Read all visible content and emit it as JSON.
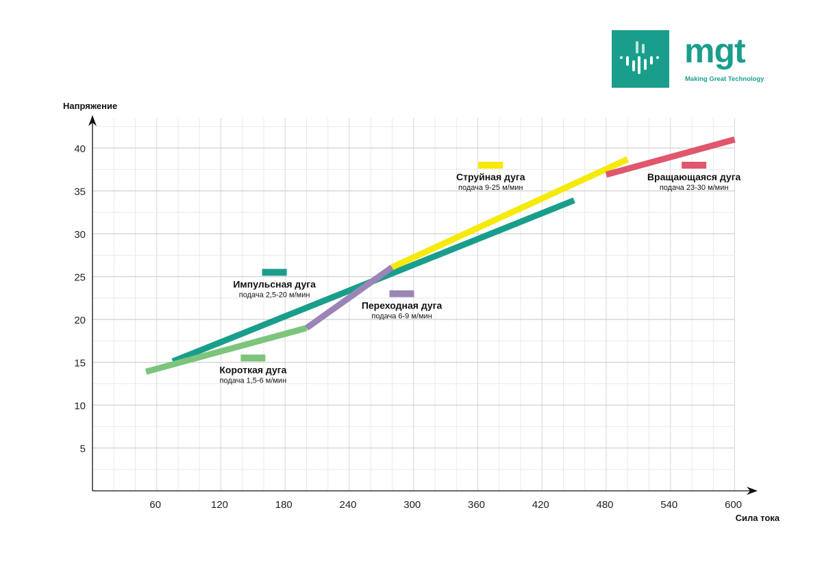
{
  "brand": {
    "name": "mgt",
    "tagline": "Making Great Technology",
    "color": "#1a9e8c"
  },
  "chart_data": {
    "type": "line",
    "xlabel": "Сила тока",
    "ylabel": "Напряжение",
    "xlim": [
      0,
      600
    ],
    "ylim": [
      0,
      44
    ],
    "xticks": [
      60,
      120,
      180,
      240,
      300,
      360,
      420,
      480,
      540,
      600
    ],
    "yticks": [
      5,
      10,
      15,
      20,
      25,
      30,
      35,
      40
    ],
    "grid": true,
    "series": [
      {
        "name": "Импульсная дуга",
        "sub": "подача 2,5-20 м/мин",
        "color": "#1a9e8c",
        "points": [
          [
            75,
            15.1
          ],
          [
            450,
            33.9
          ]
        ],
        "legend_x": 170,
        "legend_y": 25.5
      },
      {
        "name": "Короткая дуга",
        "sub": "подача 1,5-6 м/мин",
        "color": "#7dc47c",
        "points": [
          [
            50,
            13.9
          ],
          [
            200,
            19.0
          ]
        ],
        "legend_x": 150,
        "legend_y": 15.5
      },
      {
        "name": "Переходная дуга",
        "sub": "подача 6-9 м/мин",
        "color": "#9b85b6",
        "points": [
          [
            200,
            19.0
          ],
          [
            280,
            26.1
          ]
        ],
        "legend_x": 289,
        "legend_y": 23.0
      },
      {
        "name": "Струйная дуга",
        "sub": "подача 9-25 м/мин",
        "color": "#f5ea0a",
        "points": [
          [
            280,
            26.1
          ],
          [
            500,
            38.7
          ]
        ],
        "legend_x": 372,
        "legend_y": 38.0
      },
      {
        "name": "Вращающаяся дуга",
        "sub": "подача 23-30 м/мин",
        "color": "#e0566c",
        "points": [
          [
            480,
            36.9
          ],
          [
            600,
            41.0
          ]
        ],
        "legend_x": 562,
        "legend_y": 38.0
      }
    ]
  }
}
